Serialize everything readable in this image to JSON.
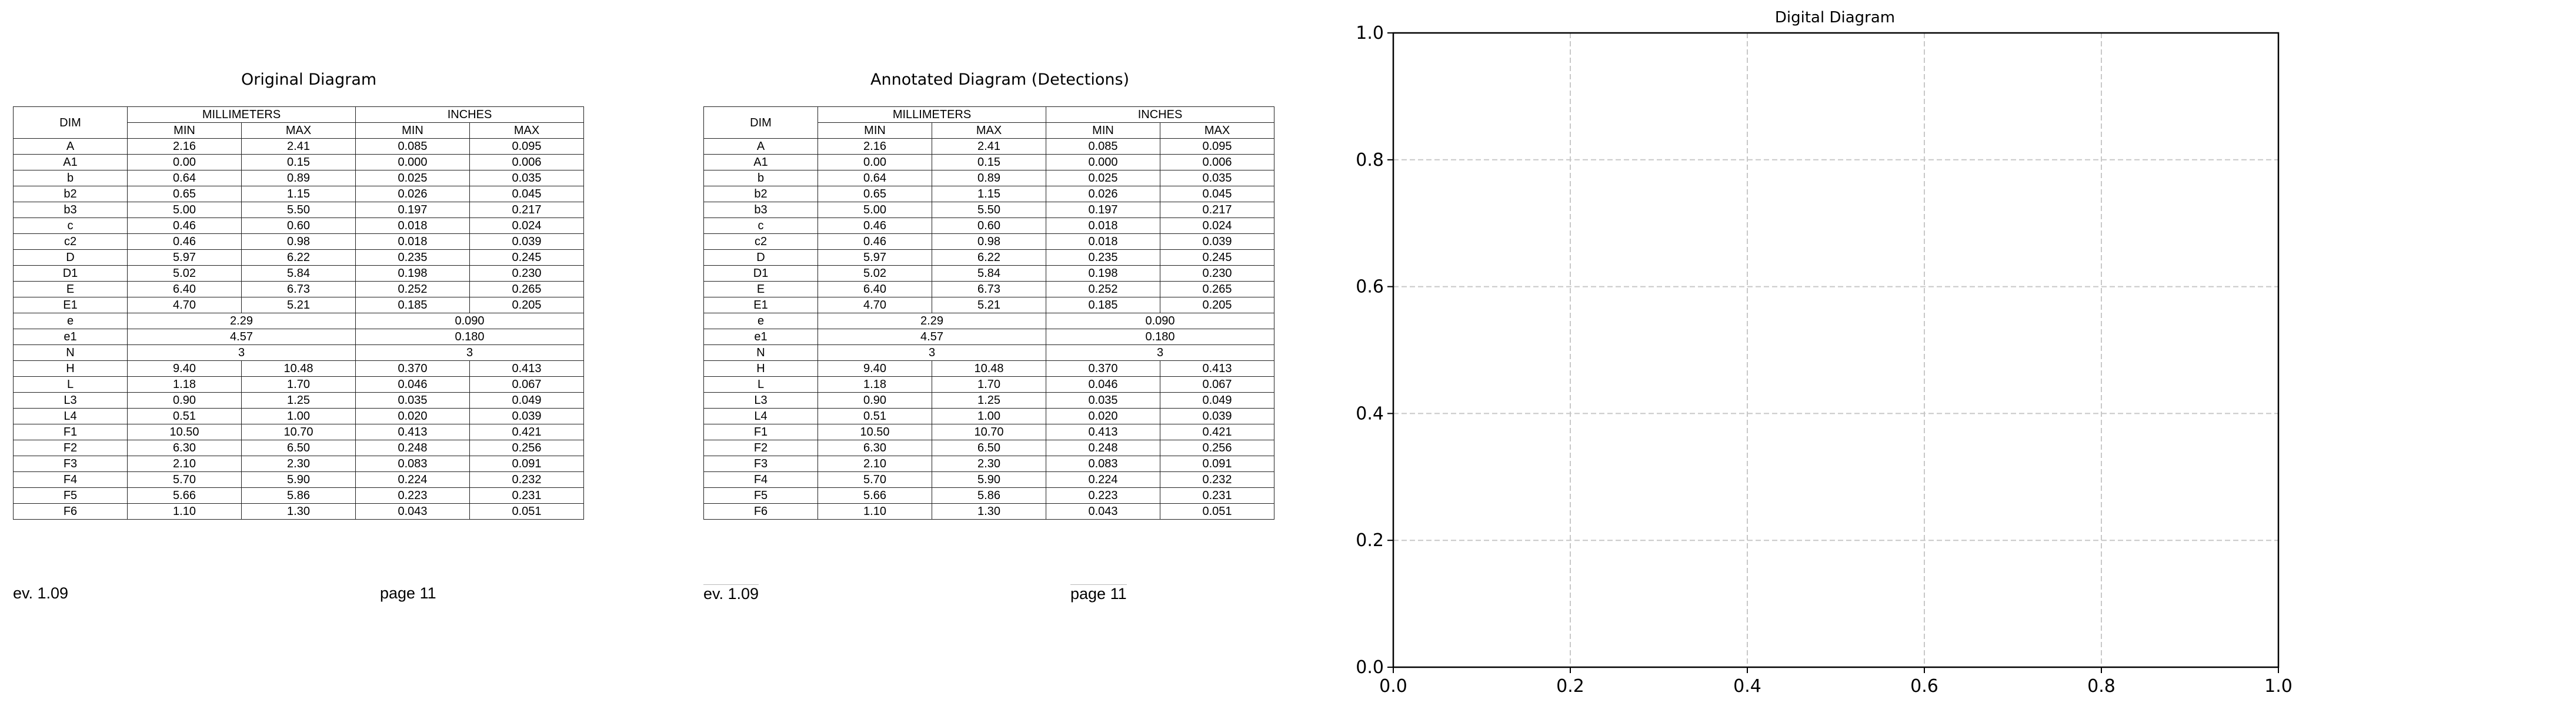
{
  "panels": {
    "original_title": "Original Diagram",
    "annotated_title": "Annotated Diagram (Detections)",
    "digital_title": "Digital Diagram"
  },
  "table": {
    "dim_header": "DIM",
    "mm_header": "MILLIMETERS",
    "in_header": "INCHES",
    "min_label": "MIN",
    "max_label": "MAX",
    "rows": [
      [
        "A",
        "2.16",
        "2.41",
        "0.085",
        "0.095"
      ],
      [
        "A1",
        "0.00",
        "0.15",
        "0.000",
        "0.006"
      ],
      [
        "b",
        "0.64",
        "0.89",
        "0.025",
        "0.035"
      ],
      [
        "b2",
        "0.65",
        "1.15",
        "0.026",
        "0.045"
      ],
      [
        "b3",
        "5.00",
        "5.50",
        "0.197",
        "0.217"
      ],
      [
        "c",
        "0.46",
        "0.60",
        "0.018",
        "0.024"
      ],
      [
        "c2",
        "0.46",
        "0.98",
        "0.018",
        "0.039"
      ],
      [
        "D",
        "5.97",
        "6.22",
        "0.235",
        "0.245"
      ],
      [
        "D1",
        "5.02",
        "5.84",
        "0.198",
        "0.230"
      ],
      [
        "E",
        "6.40",
        "6.73",
        "0.252",
        "0.265"
      ],
      [
        "E1",
        "4.70",
        "5.21",
        "0.185",
        "0.205"
      ],
      [
        "e",
        "2.29",
        "0.090"
      ],
      [
        "e1",
        "4.57",
        "0.180"
      ],
      [
        "N",
        "3",
        "3"
      ],
      [
        "H",
        "9.40",
        "10.48",
        "0.370",
        "0.413"
      ],
      [
        "L",
        "1.18",
        "1.70",
        "0.046",
        "0.067"
      ],
      [
        "L3",
        "0.90",
        "1.25",
        "0.035",
        "0.049"
      ],
      [
        "L4",
        "0.51",
        "1.00",
        "0.020",
        "0.039"
      ],
      [
        "F1",
        "10.50",
        "10.70",
        "0.413",
        "0.421"
      ],
      [
        "F2",
        "6.30",
        "6.50",
        "0.248",
        "0.256"
      ],
      [
        "F3",
        "2.10",
        "2.30",
        "0.083",
        "0.091"
      ],
      [
        "F4",
        "5.70",
        "5.90",
        "0.224",
        "0.232"
      ],
      [
        "F5",
        "5.66",
        "5.86",
        "0.223",
        "0.231"
      ],
      [
        "F6",
        "1.10",
        "1.30",
        "0.043",
        "0.051"
      ]
    ]
  },
  "footer": {
    "left": "ev. 1.09",
    "right": "page 11"
  },
  "chart_data": {
    "type": "scatter",
    "title": "Digital Diagram",
    "xlabel": "",
    "ylabel": "",
    "xlim": [
      0.0,
      1.0
    ],
    "ylim": [
      0.0,
      1.0
    ],
    "xticks": [
      "0.0",
      "0.2",
      "0.4",
      "0.6",
      "0.8",
      "1.0"
    ],
    "yticks": [
      "0.0",
      "0.2",
      "0.4",
      "0.6",
      "0.8",
      "1.0"
    ],
    "grid": true,
    "grid_style": "dashed",
    "series": []
  }
}
